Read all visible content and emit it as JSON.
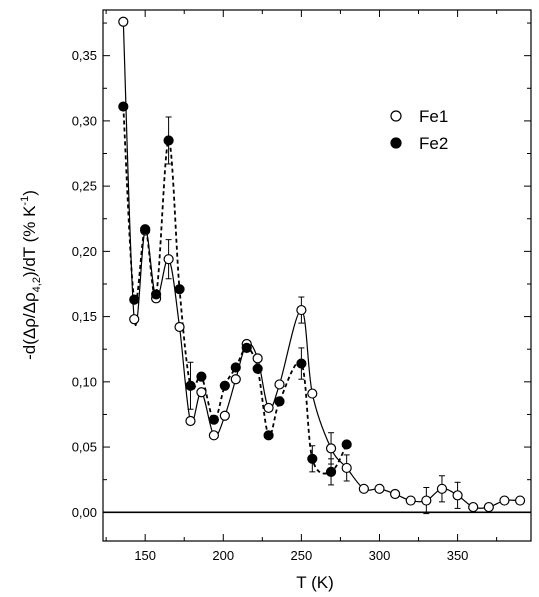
{
  "chart_data": {
    "type": "scatter",
    "title": "",
    "xlabel": "T (K)",
    "ylabel": {
      "prefix": "-d(Δρ/Δρ",
      "subscript": "4,2",
      "middle": ")/dT (% K",
      "superscript": "-1",
      "suffix": ")"
    },
    "xlim": [
      123,
      397
    ],
    "ylim": [
      -0.022,
      0.385
    ],
    "x_ticks": [
      150,
      200,
      250,
      300,
      350
    ],
    "y_ticks": [
      0.0,
      0.05,
      0.1,
      0.15,
      0.2,
      0.25,
      0.3,
      0.35
    ],
    "y_tick_labels": [
      "0,00",
      "0,05",
      "0,10",
      "0,15",
      "0,20",
      "0,25",
      "0,30",
      "0,35"
    ],
    "x_tick_labels": [
      "150",
      "200",
      "250",
      "300",
      "350"
    ],
    "zero_line": true,
    "legend_position": "top-right",
    "series": [
      {
        "name": "Fe1",
        "marker": "open-circle",
        "line": "solid",
        "color": "#000000",
        "points": [
          [
            136,
            0.376
          ],
          [
            143,
            0.148
          ],
          [
            150,
            0.216
          ],
          [
            157,
            0.164
          ],
          [
            165,
            0.194
          ],
          [
            172,
            0.142
          ],
          [
            179,
            0.07
          ],
          [
            186,
            0.092
          ],
          [
            194,
            0.059
          ],
          [
            201,
            0.074
          ],
          [
            208,
            0.102
          ],
          [
            215,
            0.129
          ],
          [
            222,
            0.118
          ],
          [
            229,
            0.08
          ],
          [
            236,
            0.098
          ],
          [
            250,
            0.155
          ],
          [
            257,
            0.091
          ],
          [
            269,
            0.049
          ],
          [
            279,
            0.034
          ],
          [
            290,
            0.018
          ],
          [
            300,
            0.018
          ],
          [
            310,
            0.014
          ],
          [
            320,
            0.009
          ],
          [
            330,
            0.009
          ],
          [
            340,
            0.018
          ],
          [
            350,
            0.013
          ],
          [
            360,
            0.004
          ],
          [
            370,
            0.004
          ],
          [
            380,
            0.009
          ],
          [
            390,
            0.009
          ]
        ],
        "errors": [
          [
            165,
            0.015
          ],
          [
            250,
            0.01
          ],
          [
            269,
            0.012
          ],
          [
            279,
            0.01
          ],
          [
            330,
            0.01
          ],
          [
            340,
            0.01
          ],
          [
            350,
            0.01
          ]
        ]
      },
      {
        "name": "Fe2",
        "marker": "filled-circle",
        "line": "dashed",
        "color": "#000000",
        "points": [
          [
            136,
            0.311
          ],
          [
            143,
            0.163
          ],
          [
            150,
            0.217
          ],
          [
            157,
            0.167
          ],
          [
            165,
            0.285
          ],
          [
            172,
            0.171
          ],
          [
            179,
            0.097
          ],
          [
            186,
            0.104
          ],
          [
            194,
            0.071
          ],
          [
            201,
            0.097
          ],
          [
            208,
            0.111
          ],
          [
            215,
            0.126
          ],
          [
            222,
            0.11
          ],
          [
            229,
            0.059
          ],
          [
            236,
            0.085
          ],
          [
            250,
            0.114
          ],
          [
            257,
            0.041
          ],
          [
            269,
            0.031
          ],
          [
            279,
            0.052
          ]
        ],
        "errors": [
          [
            165,
            0.018
          ],
          [
            179,
            0.018
          ],
          [
            250,
            0.012
          ],
          [
            257,
            0.01
          ],
          [
            269,
            0.01
          ]
        ]
      }
    ]
  }
}
